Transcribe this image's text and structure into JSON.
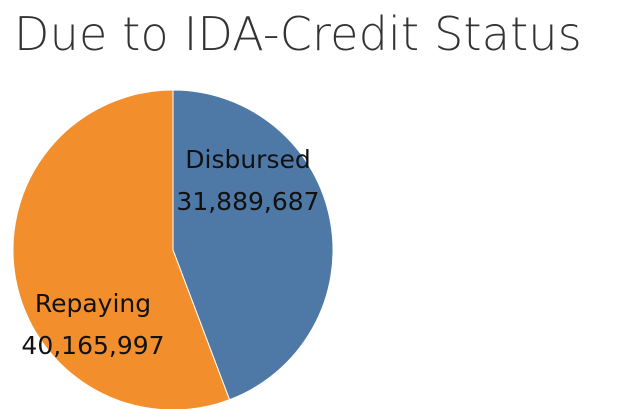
{
  "chart_data": {
    "type": "pie",
    "title": "Due to IDA-Credit Status",
    "slices": [
      {
        "name": "Disbursed",
        "value": 31889687,
        "value_label": "31,889,687",
        "color": "#4e79a7"
      },
      {
        "name": "Repaying",
        "value": 40165997,
        "value_label": "40,165,997",
        "color": "#f28e2b"
      }
    ]
  }
}
